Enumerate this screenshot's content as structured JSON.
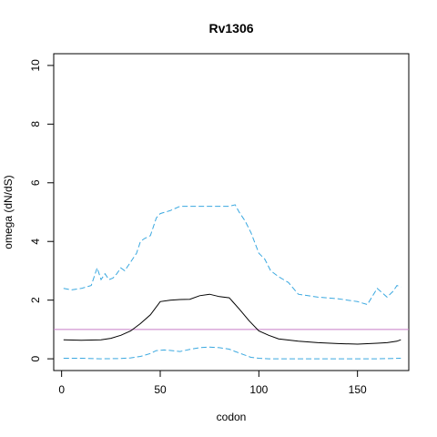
{
  "chart_data": {
    "type": "line",
    "title": "Rv1306",
    "xlabel": "codon",
    "ylabel": "omega (dN/dS)",
    "xlim": [
      -4,
      176
    ],
    "ylim": [
      -0.4,
      10.4
    ],
    "xticks": [
      0,
      50,
      100,
      150
    ],
    "yticks": [
      0,
      2,
      4,
      6,
      8,
      10
    ],
    "grid": false,
    "legend": "none",
    "reference_line": {
      "y": 1,
      "color": "#c77cc7"
    },
    "series": [
      {
        "style": "solid",
        "color": "#000000",
        "x": [
          1,
          10,
          20,
          25,
          30,
          35,
          40,
          45,
          50,
          55,
          60,
          65,
          70,
          75,
          80,
          85,
          90,
          95,
          100,
          105,
          110,
          120,
          130,
          140,
          150,
          160,
          165,
          170,
          172
        ],
        "y": [
          0.65,
          0.63,
          0.65,
          0.7,
          0.8,
          0.95,
          1.2,
          1.5,
          1.95,
          2.0,
          2.02,
          2.03,
          2.15,
          2.2,
          2.12,
          2.08,
          1.7,
          1.3,
          0.95,
          0.8,
          0.68,
          0.6,
          0.55,
          0.52,
          0.5,
          0.53,
          0.55,
          0.6,
          0.65
        ]
      },
      {
        "style": "dashed",
        "color": "#3aa8e0",
        "x": [
          1,
          5,
          10,
          15,
          18,
          20,
          22,
          24,
          26,
          28,
          30,
          32,
          35,
          38,
          40,
          42,
          45,
          48,
          50,
          55,
          60,
          65,
          70,
          75,
          80,
          85,
          88,
          90,
          93,
          96,
          100,
          103,
          106,
          110,
          115,
          120,
          130,
          140,
          150,
          155,
          160,
          165,
          168,
          170,
          172
        ],
        "y": [
          2.4,
          2.35,
          2.4,
          2.5,
          3.1,
          2.7,
          2.9,
          2.7,
          2.75,
          2.9,
          3.1,
          3.0,
          3.3,
          3.6,
          4.0,
          4.1,
          4.2,
          4.8,
          4.95,
          5.05,
          5.2,
          5.2,
          5.2,
          5.2,
          5.2,
          5.2,
          5.25,
          5.0,
          4.7,
          4.3,
          3.6,
          3.4,
          3.0,
          2.8,
          2.6,
          2.2,
          2.1,
          2.05,
          1.95,
          1.85,
          2.4,
          2.1,
          2.3,
          2.5,
          2.45
        ]
      },
      {
        "style": "dashed",
        "color": "#3aa8e0",
        "x": [
          1,
          10,
          20,
          30,
          35,
          40,
          45,
          48,
          52,
          56,
          60,
          65,
          70,
          75,
          80,
          85,
          88,
          92,
          96,
          100,
          105,
          110,
          120,
          140,
          160,
          172
        ],
        "y": [
          0.02,
          0.02,
          0.0,
          0.01,
          0.03,
          0.08,
          0.18,
          0.28,
          0.3,
          0.28,
          0.25,
          0.32,
          0.38,
          0.4,
          0.38,
          0.33,
          0.25,
          0.15,
          0.05,
          0.02,
          0.0,
          0.0,
          0.0,
          0.0,
          0.0,
          0.02
        ]
      }
    ]
  }
}
